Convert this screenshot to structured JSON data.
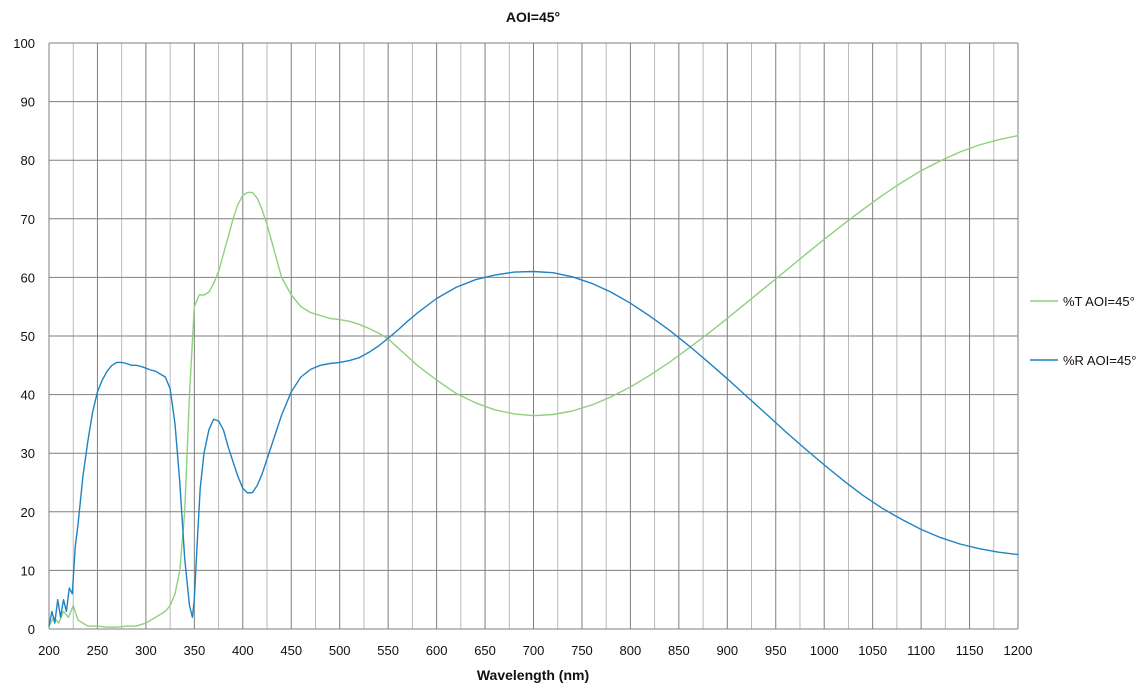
{
  "chart_data": {
    "type": "line",
    "title": "AOI=45°",
    "xlabel": "Wavelength (nm)",
    "ylabel": "",
    "xlim": [
      200,
      1200
    ],
    "ylim": [
      0,
      100
    ],
    "x_ticks": [
      200,
      250,
      300,
      350,
      400,
      450,
      500,
      550,
      600,
      650,
      700,
      750,
      800,
      850,
      900,
      950,
      1000,
      1050,
      1100,
      1150,
      1200
    ],
    "y_ticks": [
      0,
      10,
      20,
      30,
      40,
      50,
      60,
      70,
      80,
      90,
      100
    ],
    "grid": true,
    "legend_position": "right",
    "series": [
      {
        "name": "%T AOI=45°",
        "color": "#8fd07e",
        "points": [
          [
            200,
            0.5
          ],
          [
            205,
            2
          ],
          [
            210,
            1
          ],
          [
            215,
            3
          ],
          [
            220,
            2
          ],
          [
            225,
            4
          ],
          [
            230,
            1.5
          ],
          [
            235,
            1
          ],
          [
            240,
            0.5
          ],
          [
            250,
            0.5
          ],
          [
            260,
            0.3
          ],
          [
            270,
            0.3
          ],
          [
            280,
            0.5
          ],
          [
            290,
            0.5
          ],
          [
            300,
            1
          ],
          [
            310,
            2
          ],
          [
            320,
            3
          ],
          [
            325,
            4
          ],
          [
            330,
            6
          ],
          [
            335,
            10
          ],
          [
            340,
            20
          ],
          [
            345,
            40
          ],
          [
            350,
            55
          ],
          [
            355,
            57
          ],
          [
            360,
            57
          ],
          [
            365,
            57.5
          ],
          [
            370,
            59
          ],
          [
            375,
            61
          ],
          [
            380,
            64
          ],
          [
            385,
            67
          ],
          [
            390,
            70
          ],
          [
            395,
            72.5
          ],
          [
            400,
            74
          ],
          [
            405,
            74.5
          ],
          [
            410,
            74.5
          ],
          [
            415,
            73.5
          ],
          [
            420,
            71.5
          ],
          [
            425,
            69
          ],
          [
            430,
            66
          ],
          [
            440,
            60
          ],
          [
            450,
            57
          ],
          [
            460,
            55
          ],
          [
            470,
            54
          ],
          [
            480,
            53.5
          ],
          [
            490,
            53
          ],
          [
            500,
            52.8
          ],
          [
            510,
            52.5
          ],
          [
            520,
            52
          ],
          [
            530,
            51.3
          ],
          [
            540,
            50.5
          ],
          [
            550,
            49.5
          ],
          [
            560,
            48
          ],
          [
            570,
            46.5
          ],
          [
            580,
            45
          ],
          [
            600,
            42.5
          ],
          [
            620,
            40.2
          ],
          [
            640,
            38.6
          ],
          [
            660,
            37.4
          ],
          [
            680,
            36.7
          ],
          [
            700,
            36.4
          ],
          [
            720,
            36.6
          ],
          [
            740,
            37.2
          ],
          [
            760,
            38.2
          ],
          [
            780,
            39.6
          ],
          [
            800,
            41.3
          ],
          [
            820,
            43.3
          ],
          [
            840,
            45.5
          ],
          [
            860,
            47.9
          ],
          [
            880,
            50.4
          ],
          [
            900,
            53
          ],
          [
            920,
            55.7
          ],
          [
            940,
            58.4
          ],
          [
            960,
            61.1
          ],
          [
            980,
            63.8
          ],
          [
            1000,
            66.5
          ],
          [
            1020,
            69.1
          ],
          [
            1040,
            71.6
          ],
          [
            1060,
            74
          ],
          [
            1080,
            76.2
          ],
          [
            1100,
            78.2
          ],
          [
            1120,
            79.9
          ],
          [
            1140,
            81.4
          ],
          [
            1160,
            82.6
          ],
          [
            1180,
            83.5
          ],
          [
            1200,
            84.2
          ]
        ]
      },
      {
        "name": "%R AOI=45°",
        "color": "#1f83c2",
        "points": [
          [
            200,
            0.5
          ],
          [
            203,
            3
          ],
          [
            206,
            1
          ],
          [
            209,
            5
          ],
          [
            212,
            2
          ],
          [
            215,
            5
          ],
          [
            218,
            3
          ],
          [
            221,
            7
          ],
          [
            224,
            6
          ],
          [
            227,
            14
          ],
          [
            230,
            18
          ],
          [
            235,
            26
          ],
          [
            240,
            32
          ],
          [
            245,
            37
          ],
          [
            250,
            40.5
          ],
          [
            255,
            42.5
          ],
          [
            260,
            44
          ],
          [
            265,
            45
          ],
          [
            270,
            45.5
          ],
          [
            275,
            45.5
          ],
          [
            280,
            45.3
          ],
          [
            285,
            45
          ],
          [
            290,
            45
          ],
          [
            295,
            44.8
          ],
          [
            300,
            44.5
          ],
          [
            305,
            44.2
          ],
          [
            310,
            44
          ],
          [
            315,
            43.5
          ],
          [
            320,
            43
          ],
          [
            325,
            41
          ],
          [
            330,
            35
          ],
          [
            335,
            25
          ],
          [
            340,
            12
          ],
          [
            345,
            4
          ],
          [
            348,
            2
          ],
          [
            350,
            5
          ],
          [
            353,
            15
          ],
          [
            356,
            24
          ],
          [
            360,
            30
          ],
          [
            365,
            34
          ],
          [
            370,
            35.8
          ],
          [
            375,
            35.5
          ],
          [
            380,
            34
          ],
          [
            385,
            31
          ],
          [
            390,
            28.5
          ],
          [
            395,
            26
          ],
          [
            400,
            24
          ],
          [
            405,
            23.2
          ],
          [
            410,
            23.3
          ],
          [
            415,
            24.5
          ],
          [
            420,
            26.5
          ],
          [
            425,
            29
          ],
          [
            430,
            31.5
          ],
          [
            440,
            36.5
          ],
          [
            450,
            40.5
          ],
          [
            460,
            43
          ],
          [
            470,
            44.3
          ],
          [
            480,
            45
          ],
          [
            490,
            45.3
          ],
          [
            500,
            45.5
          ],
          [
            510,
            45.8
          ],
          [
            520,
            46.3
          ],
          [
            530,
            47.2
          ],
          [
            540,
            48.3
          ],
          [
            550,
            49.6
          ],
          [
            560,
            51
          ],
          [
            570,
            52.5
          ],
          [
            580,
            53.9
          ],
          [
            600,
            56.4
          ],
          [
            620,
            58.3
          ],
          [
            640,
            59.6
          ],
          [
            660,
            60.4
          ],
          [
            680,
            60.9
          ],
          [
            700,
            61
          ],
          [
            720,
            60.8
          ],
          [
            740,
            60.1
          ],
          [
            760,
            59
          ],
          [
            780,
            57.5
          ],
          [
            800,
            55.6
          ],
          [
            820,
            53.4
          ],
          [
            840,
            51
          ],
          [
            860,
            48.4
          ],
          [
            880,
            45.6
          ],
          [
            900,
            42.7
          ],
          [
            920,
            39.7
          ],
          [
            940,
            36.7
          ],
          [
            960,
            33.7
          ],
          [
            980,
            30.8
          ],
          [
            1000,
            28
          ],
          [
            1020,
            25.3
          ],
          [
            1040,
            22.8
          ],
          [
            1060,
            20.6
          ],
          [
            1080,
            18.7
          ],
          [
            1100,
            17
          ],
          [
            1120,
            15.6
          ],
          [
            1140,
            14.5
          ],
          [
            1160,
            13.7
          ],
          [
            1180,
            13.1
          ],
          [
            1200,
            12.7
          ]
        ]
      }
    ]
  }
}
